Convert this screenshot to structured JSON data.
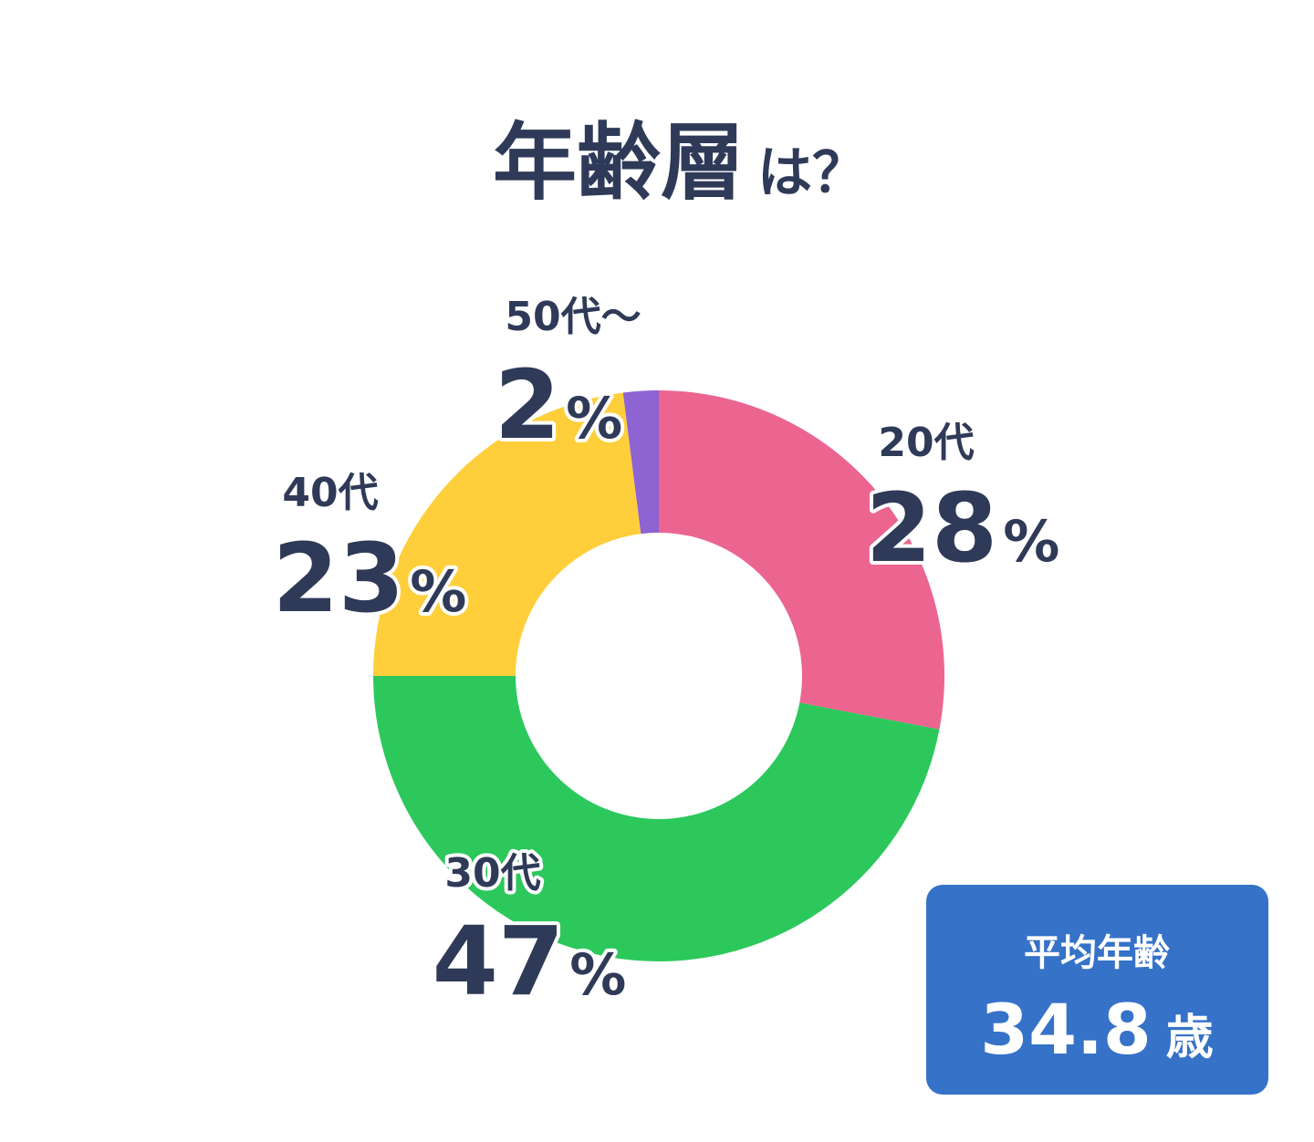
{
  "chart_data": {
    "type": "donut",
    "title": "年齢層",
    "title_suffix": "は？",
    "categories": [
      "20代",
      "30代",
      "40代",
      "50代～"
    ],
    "values": [
      28,
      47,
      23,
      2
    ],
    "value_labels": [
      "28%",
      "47%",
      "23%",
      "2%"
    ],
    "colors": [
      "#eb6590",
      "#2cc85c",
      "#fecf3b",
      "#8e63d2"
    ],
    "average": {
      "label": "平均年齢",
      "value": 34.8,
      "unit": "歳"
    }
  }
}
